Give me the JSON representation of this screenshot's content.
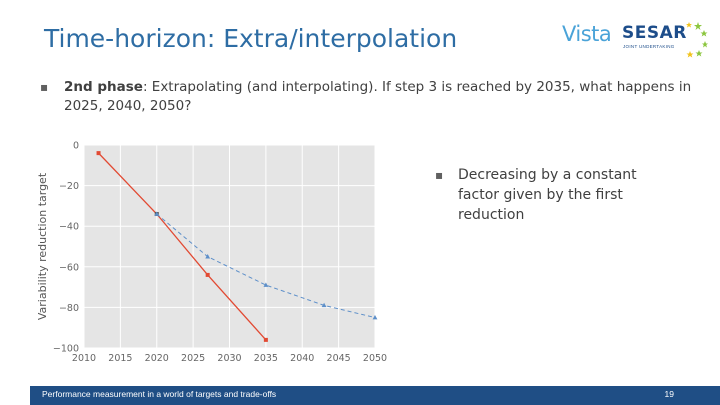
{
  "slide": {
    "title": "Time-horizon: Extra/interpolation",
    "bullet_main_phase": "2nd phase",
    "bullet_main_text": ": Extrapolating (and interpolating). If step 3 is reached by 2035, what happens in 2025, 2040, 2050?",
    "bullet_side_text": "Decreasing by a constant factor given by the first reduction",
    "bullet_glyph": "▪"
  },
  "logo": {
    "vista": "Vista",
    "sesar": "SESAR",
    "sub": "JOINT UNDERTAKING",
    "accent_color": "#4aa3d8",
    "brand_color": "#1d4d8a"
  },
  "footer": {
    "text": "Performance measurement in a world of targets and trade-offs",
    "page_number": "19",
    "bar_color": "#1f4e85"
  },
  "chart_data": {
    "type": "line",
    "ylabel": "Variability reduction target",
    "xlabel": "",
    "title": "",
    "xlim": [
      2010,
      2050
    ],
    "ylim": [
      -100,
      0
    ],
    "xticks": [
      2010,
      2015,
      2020,
      2025,
      2030,
      2035,
      2040,
      2045,
      2050
    ],
    "yticks": [
      0,
      -20,
      -40,
      -60,
      -80,
      -100
    ],
    "grid": true,
    "series": [
      {
        "style": "solid",
        "color": "#e24a33",
        "marker": "square",
        "x": [
          2012,
          2020,
          2027,
          2035
        ],
        "y": [
          -4,
          -34,
          -64,
          -96
        ]
      },
      {
        "style": "dashed",
        "color": "#5d8fc9",
        "marker": "triangle",
        "x": [
          2020,
          2027,
          2035,
          2043,
          2050
        ],
        "y": [
          -34,
          -55,
          -69,
          -79,
          -85
        ]
      }
    ]
  }
}
